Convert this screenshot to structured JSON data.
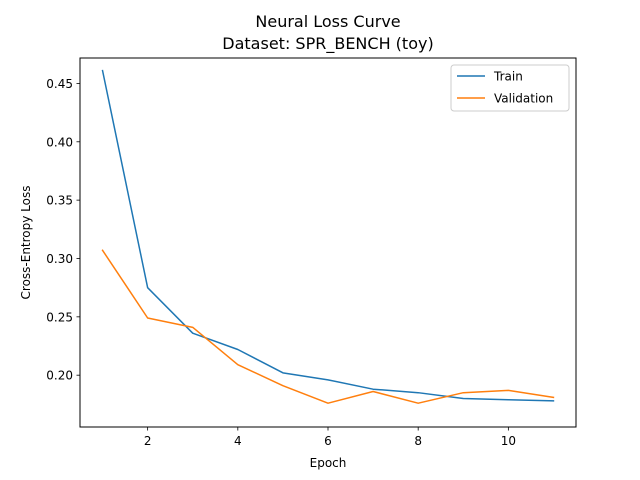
{
  "chart_data": {
    "type": "line",
    "title": "Neural Loss Curve",
    "subtitle": "Dataset: SPR_BENCH (toy)",
    "xlabel": "Epoch",
    "ylabel": "Cross-Entropy Loss",
    "x": [
      1,
      2,
      3,
      4,
      5,
      6,
      7,
      8,
      9,
      10,
      11
    ],
    "xlim": [
      0.5,
      11.5
    ],
    "ylim": [
      0.1556,
      0.4718
    ],
    "xticks": [
      2,
      4,
      6,
      8,
      10
    ],
    "yticks": [
      0.2,
      0.25,
      0.3,
      0.35,
      0.4,
      0.45
    ],
    "xtick_labels": [
      "2",
      "4",
      "6",
      "8",
      "10"
    ],
    "ytick_labels": [
      "0.20",
      "0.25",
      "0.30",
      "0.35",
      "0.40",
      "0.45"
    ],
    "grid": false,
    "legend_position": "top-right",
    "series": [
      {
        "name": "Train",
        "color": "#1f77b4",
        "values": [
          0.461,
          0.275,
          0.236,
          0.222,
          0.202,
          0.196,
          0.188,
          0.185,
          0.18,
          0.179,
          0.178
        ]
      },
      {
        "name": "Validation",
        "color": "#ff7f0e",
        "values": [
          0.307,
          0.249,
          0.241,
          0.209,
          0.191,
          0.176,
          0.186,
          0.176,
          0.185,
          0.187,
          0.181
        ]
      }
    ]
  }
}
